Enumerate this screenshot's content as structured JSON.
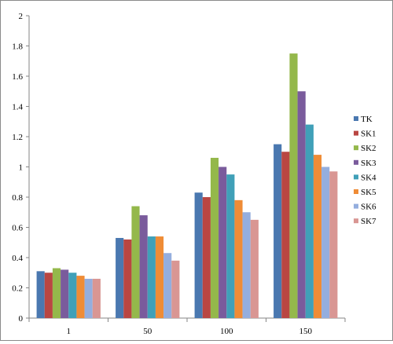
{
  "chart_data": {
    "type": "bar",
    "categories": [
      "1",
      "50",
      "100",
      "150"
    ],
    "ylim": [
      0,
      2
    ],
    "yticks": [
      "0",
      "0.2",
      "0.4",
      "0.6",
      "0.8",
      "1",
      "1.2",
      "1.4",
      "1.6",
      "1.8",
      "2"
    ],
    "grid": false,
    "legend_position": "right",
    "series": [
      {
        "name": "TK",
        "color": "#4a78b0",
        "values": [
          0.31,
          0.53,
          0.83,
          1.15
        ]
      },
      {
        "name": "SK1",
        "color": "#b94642",
        "values": [
          0.3,
          0.52,
          0.8,
          1.1
        ]
      },
      {
        "name": "SK2",
        "color": "#94b84b",
        "values": [
          0.33,
          0.74,
          1.06,
          1.75
        ]
      },
      {
        "name": "SK3",
        "color": "#7a5b9c",
        "values": [
          0.32,
          0.68,
          1.0,
          1.5
        ]
      },
      {
        "name": "SK4",
        "color": "#40a0b8",
        "values": [
          0.3,
          0.54,
          0.95,
          1.28
        ]
      },
      {
        "name": "SK5",
        "color": "#ef8c36",
        "values": [
          0.28,
          0.54,
          0.78,
          1.08
        ]
      },
      {
        "name": "SK6",
        "color": "#94aede",
        "values": [
          0.26,
          0.43,
          0.7,
          1.0
        ]
      },
      {
        "name": "SK7",
        "color": "#d99693",
        "values": [
          0.26,
          0.38,
          0.65,
          0.97
        ]
      }
    ]
  }
}
